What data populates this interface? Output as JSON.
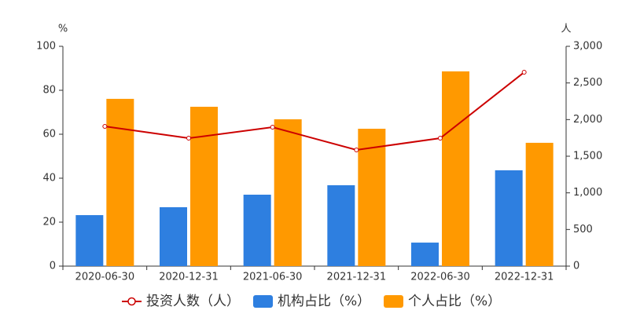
{
  "chart_data": {
    "type": "bar-line",
    "y_label": "%",
    "y2_label": "人",
    "categories": [
      "2020-06-30",
      "2020-12-31",
      "2021-06-30",
      "2021-12-31",
      "2022-06-30",
      "2022-12-31"
    ],
    "series": [
      {
        "name": "投资人数（人）",
        "type": "line",
        "axis": "y2",
        "color": "#cc0000",
        "values": [
          1907,
          1746,
          1896,
          1586,
          1746,
          2646
        ]
      },
      {
        "name": "机构占比（%）",
        "type": "bar",
        "color": "#2e7fe0",
        "values": [
          23.2,
          26.8,
          32.5,
          36.8,
          10.7,
          43.6
        ]
      },
      {
        "name": "个人占比（%）",
        "type": "bar",
        "color": "#ff9900",
        "values": [
          76.1,
          72.5,
          66.8,
          62.5,
          88.6,
          56.1
        ]
      }
    ],
    "ylim": [
      0,
      100
    ],
    "yticks": [
      0,
      20,
      40,
      60,
      80,
      100
    ],
    "y2lim": [
      0,
      3000
    ],
    "y2ticks": [
      0,
      500,
      {
        "value": 1000,
        "label": "1,000"
      },
      {
        "value": 1500,
        "label": "1,500"
      },
      {
        "value": 2000,
        "label": "2,000"
      },
      {
        "value": 2500,
        "label": "2,500"
      },
      {
        "value": 3000,
        "label": "3,000"
      }
    ],
    "grid": false,
    "legend": "bottom"
  }
}
